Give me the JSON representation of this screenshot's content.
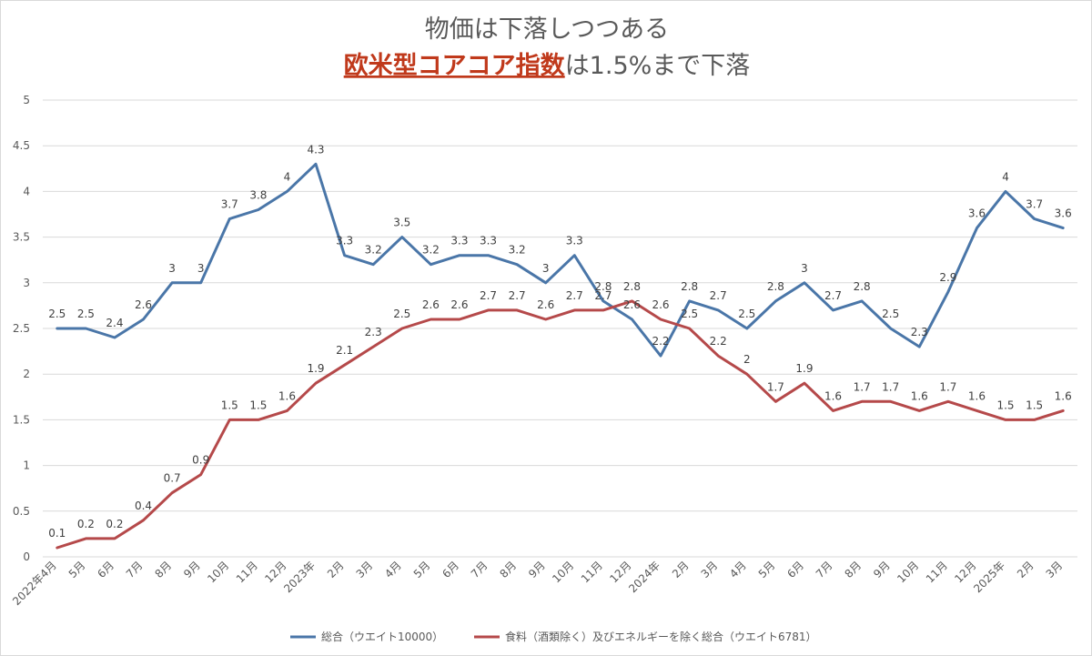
{
  "chart_data": {
    "type": "line",
    "title_line1": "物価は下落しつつある",
    "title_line2_emphasis": "欧米型コアコア指数",
    "title_line2_rest": "は1.5%まで下落",
    "xlabel": "",
    "ylabel": "",
    "ylim": [
      0,
      5
    ],
    "yticks": [
      "0",
      "0.5",
      "1",
      "1.5",
      "2",
      "2.5",
      "3",
      "3.5",
      "4",
      "4.5",
      "5"
    ],
    "grid": true,
    "legend_position": "bottom",
    "categories": [
      "2022年4月",
      "5月",
      "6月",
      "7月",
      "8月",
      "9月",
      "10月",
      "11月",
      "12月",
      "2023年",
      "2月",
      "3月",
      "4月",
      "5月",
      "6月",
      "7月",
      "8月",
      "9月",
      "10月",
      "11月",
      "12月",
      "2024年",
      "2月",
      "3月",
      "4月",
      "5月",
      "6月",
      "7月",
      "8月",
      "9月",
      "10月",
      "11月",
      "12月",
      "2025年",
      "2月",
      "3月"
    ],
    "series": [
      {
        "name": "総合（ウエイト10000）",
        "color": "#4a76a8",
        "values": [
          2.5,
          2.5,
          2.4,
          2.6,
          3,
          3,
          3.7,
          3.8,
          4,
          4.3,
          3.3,
          3.2,
          3.5,
          3.2,
          3.3,
          3.3,
          3.2,
          3,
          3.3,
          2.8,
          2.6,
          2.2,
          2.8,
          2.7,
          2.5,
          2.8,
          3,
          2.7,
          2.8,
          2.5,
          2.3,
          2.9,
          3.6,
          4,
          3.7,
          3.6
        ]
      },
      {
        "name": "食料（酒類除く）及びエネルギーを除く総合（ウエイト6781）",
        "color": "#b5494a",
        "values": [
          0.1,
          0.2,
          0.2,
          0.4,
          0.7,
          0.9,
          1.5,
          1.5,
          1.6,
          1.9,
          2.1,
          2.3,
          2.5,
          2.6,
          2.6,
          2.7,
          2.7,
          2.6,
          2.7,
          2.7,
          2.8,
          2.6,
          2.5,
          2.2,
          2,
          1.7,
          1.9,
          1.6,
          1.7,
          1.7,
          1.6,
          1.7,
          1.6,
          1.5,
          1.5,
          1.6
        ]
      }
    ]
  }
}
